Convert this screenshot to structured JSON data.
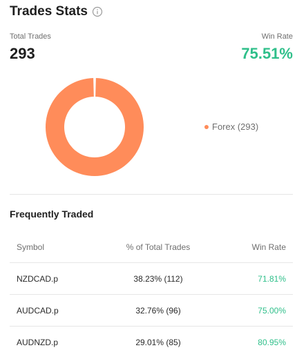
{
  "header": {
    "title": "Trades Stats",
    "info_icon": "info-circle-icon"
  },
  "stats": {
    "total_trades_label": "Total Trades",
    "total_trades_value": "293",
    "win_rate_label": "Win Rate",
    "win_rate_value": "75.51%"
  },
  "chart_data": {
    "type": "pie",
    "categories": [
      "Forex"
    ],
    "values": [
      293
    ],
    "legend_labels": [
      "Forex (293)"
    ],
    "colors": [
      "#ff8c5a"
    ],
    "legend": "right"
  },
  "frequently_traded": {
    "title": "Frequently Traded",
    "columns": [
      "Symbol",
      "% of Total Trades",
      "Win Rate"
    ],
    "rows": [
      {
        "symbol": "NZDCAD.p",
        "pct": "38.23% (112)",
        "win_rate": "71.81%"
      },
      {
        "symbol": "AUDCAD.p",
        "pct": "32.76% (96)",
        "win_rate": "75.00%"
      },
      {
        "symbol": "AUDNZD.p",
        "pct": "29.01% (85)",
        "win_rate": "80.95%"
      }
    ]
  },
  "colors": {
    "accent_green": "#2fbf8a",
    "forex_orange": "#ff8c5a"
  }
}
